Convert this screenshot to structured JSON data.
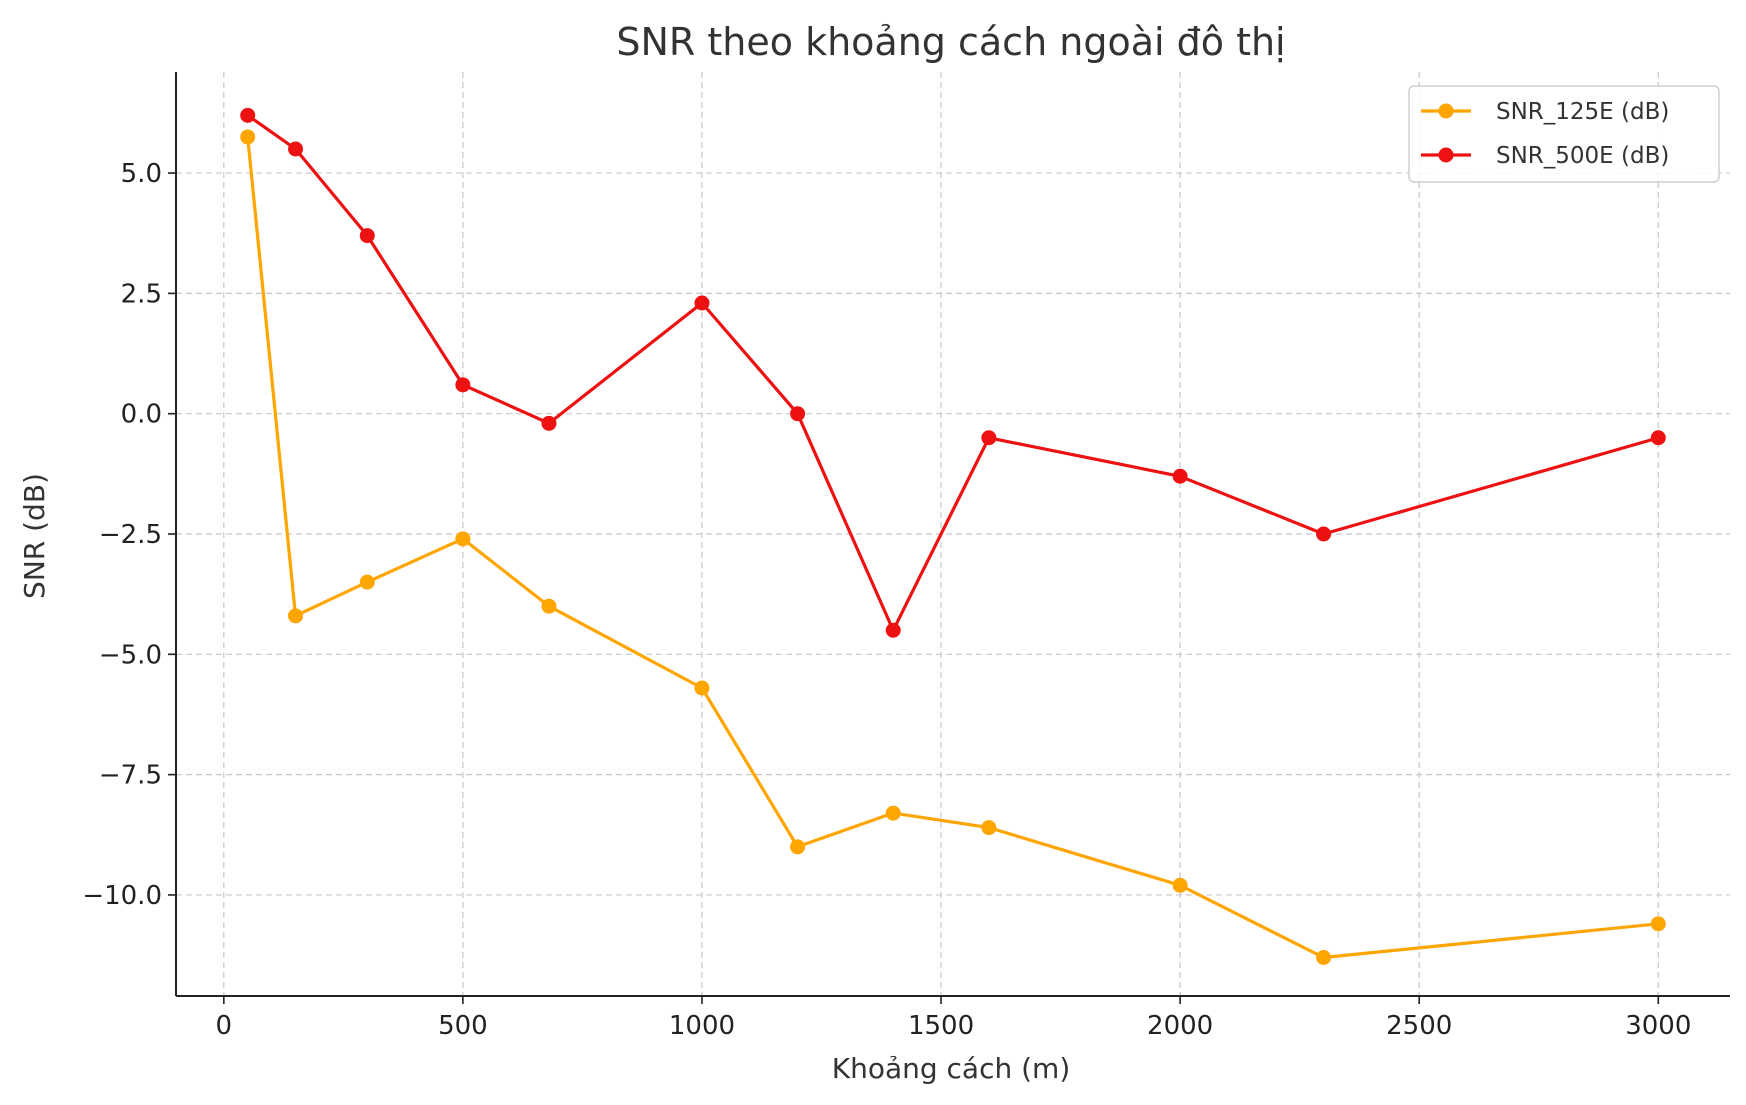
{
  "chart_data": {
    "type": "line",
    "title": "SNR theo khoảng cách ngoài đô thị",
    "xlabel": "Khoảng cách (m)",
    "ylabel": "SNR (dB)",
    "xlim": [
      -100,
      3150
    ],
    "ylim": [
      -12.1,
      7.1
    ],
    "xticks": [
      0,
      500,
      1000,
      1500,
      2000,
      2500,
      3000
    ],
    "xtick_labels": [
      "0",
      "500",
      "1000",
      "1500",
      "2000",
      "2500",
      "3000"
    ],
    "yticks": [
      5.0,
      2.5,
      0.0,
      -2.5,
      -5.0,
      -7.5,
      -10.0
    ],
    "ytick_labels": [
      "5.0",
      "2.5",
      "0.0",
      "−2.5",
      "−5.0",
      "−7.5",
      "−10.0"
    ],
    "grid": true,
    "legend_position": "top-right",
    "x": [
      50,
      150,
      300,
      500,
      680,
      1000,
      1200,
      1400,
      1600,
      2000,
      2300,
      3000
    ],
    "series": [
      {
        "name": "SNR_125E (dB)",
        "color": "#FFA500",
        "values": [
          5.75,
          -4.2,
          -3.5,
          -2.6,
          -4.0,
          -5.7,
          -9.0,
          -8.3,
          -8.6,
          -9.8,
          -11.3,
          -10.6
        ]
      },
      {
        "name": "SNR_500E (dB)",
        "color": "#EE1111",
        "values": [
          6.2,
          5.5,
          3.7,
          0.6,
          -0.2,
          2.3,
          0.0,
          -4.5,
          -0.5,
          -1.3,
          -2.5,
          -0.5
        ]
      }
    ]
  }
}
